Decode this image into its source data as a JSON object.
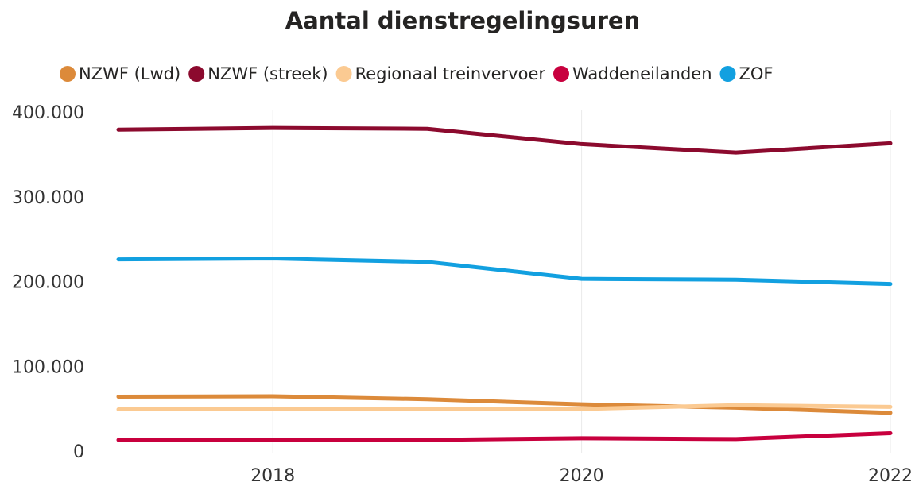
{
  "chart_data": {
    "type": "line",
    "title": "Aantal dienstregelingsuren",
    "x": [
      2017,
      2018,
      2019,
      2020,
      2021,
      2022
    ],
    "series": [
      {
        "name": "NZWF (Lwd)",
        "color": "#dc8a3a",
        "values": [
          66000,
          66500,
          63000,
          57000,
          53000,
          47000
        ]
      },
      {
        "name": "NZWF (streek)",
        "color": "#8c0a2e",
        "values": [
          381000,
          383000,
          382000,
          364000,
          354000,
          365000
        ]
      },
      {
        "name": "Regionaal treinvervoer",
        "color": "#fbca92",
        "values": [
          51000,
          51000,
          51000,
          51500,
          56000,
          54000
        ]
      },
      {
        "name": "Waddeneilanden",
        "color": "#c8003e",
        "values": [
          15000,
          15000,
          15000,
          17000,
          16000,
          23000
        ]
      },
      {
        "name": "ZOF",
        "color": "#12a0e0",
        "values": [
          228000,
          229000,
          225000,
          205000,
          204000,
          199000
        ]
      }
    ],
    "xlim": [
      2017,
      2022
    ],
    "xticks": [
      2018,
      2020,
      2022
    ],
    "ylim": [
      0,
      400000
    ],
    "yticks": [
      0,
      {
        "value": 100000,
        "label": "100.000"
      },
      {
        "value": 200000,
        "label": "200.000"
      },
      {
        "value": 300000,
        "label": "300.000"
      },
      {
        "value": 400000,
        "label": "400.000"
      }
    ],
    "grid": true
  }
}
